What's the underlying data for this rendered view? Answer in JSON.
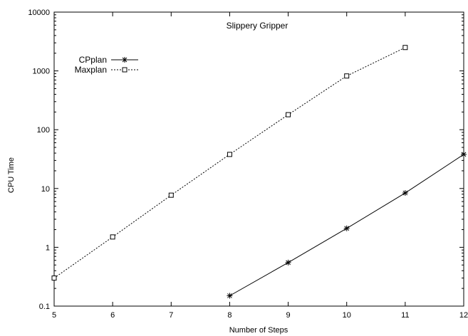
{
  "chart_data": {
    "type": "line",
    "title": "Slippery Gripper",
    "xlabel": "Number of Steps",
    "ylabel": "CPU Time",
    "xlim": [
      5,
      12
    ],
    "ylim": [
      0.1,
      10000
    ],
    "yscale": "log",
    "grid": false,
    "legend_position": "top-left",
    "x_ticks": [
      "5",
      "6",
      "7",
      "8",
      "9",
      "10",
      "11",
      "12"
    ],
    "y_ticks": [
      "0.1",
      "1",
      "10",
      "100",
      "1000",
      "10000"
    ],
    "series": [
      {
        "name": "CPplan",
        "style": "solid",
        "marker": "asterisk",
        "x": [
          8,
          9,
          10,
          11,
          12
        ],
        "y": [
          0.15,
          0.55,
          2.1,
          8.4,
          38
        ]
      },
      {
        "name": "Maxplan",
        "style": "dotted",
        "marker": "square",
        "x": [
          5,
          6,
          7,
          8,
          9,
          10,
          11
        ],
        "y": [
          0.3,
          1.5,
          7.7,
          38,
          180,
          820,
          2500
        ]
      }
    ]
  }
}
